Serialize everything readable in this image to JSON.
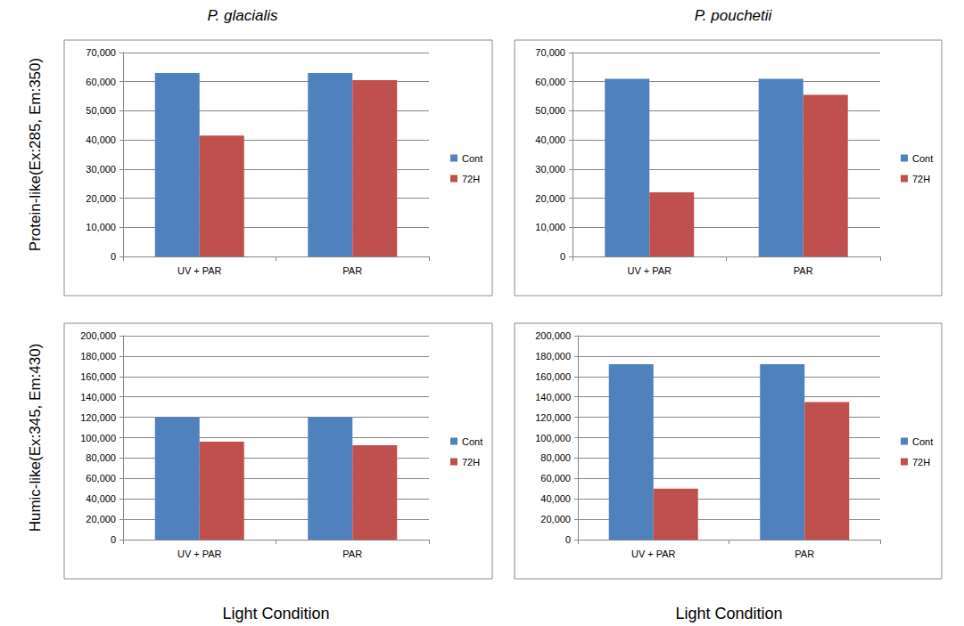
{
  "chart_data": [
    {
      "type": "bar",
      "title": "P. glacialis",
      "y_label": "Protein-like(Ex:285, Em:350)",
      "categories": [
        "UV + PAR",
        "PAR"
      ],
      "series": [
        {
          "name": "Cont",
          "color": "#4f81bd",
          "values": [
            63000,
            63000
          ]
        },
        {
          "name": "72H",
          "color": "#c0504d",
          "values": [
            41500,
            60500
          ]
        }
      ],
      "ylim": [
        0,
        70000
      ],
      "yticks": [
        0,
        10000,
        20000,
        30000,
        40000,
        50000,
        60000,
        70000
      ],
      "grid": true,
      "legend": "right"
    },
    {
      "type": "bar",
      "title": "P. pouchetii",
      "categories": [
        "UV + PAR",
        "PAR"
      ],
      "series": [
        {
          "name": "Cont",
          "color": "#4f81bd",
          "values": [
            61000,
            61000
          ]
        },
        {
          "name": "72H",
          "color": "#c0504d",
          "values": [
            22000,
            55500
          ]
        }
      ],
      "ylim": [
        0,
        70000
      ],
      "yticks": [
        0,
        10000,
        20000,
        30000,
        40000,
        50000,
        60000,
        70000
      ],
      "grid": true,
      "legend": "right"
    },
    {
      "type": "bar",
      "y_label": "Humic-like(Ex:345, Em:430)",
      "x_label": "Light Condition",
      "categories": [
        "UV + PAR",
        "PAR"
      ],
      "series": [
        {
          "name": "Cont",
          "color": "#4f81bd",
          "values": [
            120000,
            120000
          ]
        },
        {
          "name": "72H",
          "color": "#c0504d",
          "values": [
            96000,
            92500
          ]
        }
      ],
      "ylim": [
        0,
        200000
      ],
      "yticks": [
        0,
        20000,
        40000,
        60000,
        80000,
        100000,
        120000,
        140000,
        160000,
        180000,
        200000
      ],
      "grid": true,
      "legend": "right"
    },
    {
      "type": "bar",
      "x_label": "Light Condition",
      "categories": [
        "UV + PAR",
        "PAR"
      ],
      "series": [
        {
          "name": "Cont",
          "color": "#4f81bd",
          "values": [
            172000,
            172000
          ]
        },
        {
          "name": "72H",
          "color": "#c0504d",
          "values": [
            50000,
            135000
          ]
        }
      ],
      "ylim": [
        0,
        200000
      ],
      "yticks": [
        0,
        20000,
        40000,
        60000,
        80000,
        100000,
        120000,
        140000,
        160000,
        180000,
        200000
      ],
      "grid": true,
      "legend": "right"
    }
  ]
}
